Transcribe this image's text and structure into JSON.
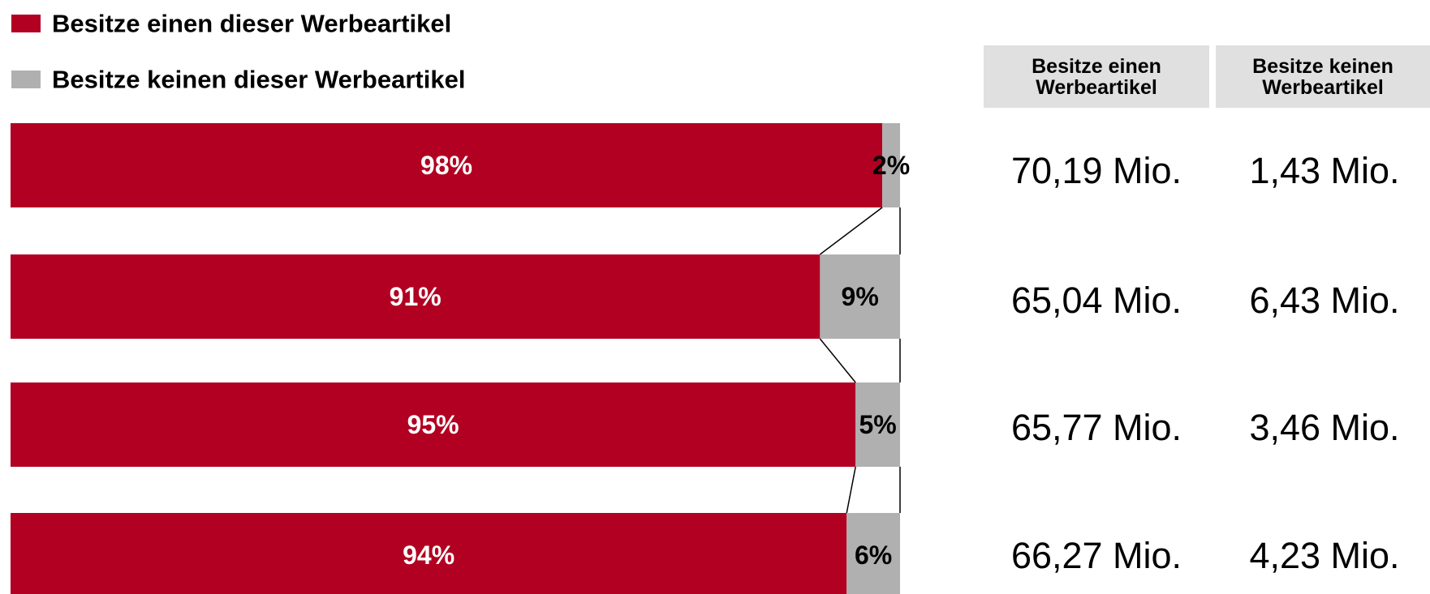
{
  "chart_data": {
    "type": "stacked-bar",
    "orientation": "horizontal",
    "categories": [
      null,
      null,
      null,
      null
    ],
    "series": [
      {
        "name": "Besitze einen dieser Werbeartikel",
        "color": "#b10021",
        "label_color": "#ffffff",
        "values": [
          98,
          91,
          95,
          94
        ],
        "value_labels": [
          "98%",
          "91%",
          "95%",
          "94%"
        ]
      },
      {
        "name": "Besitze keinen dieser Werbeartikel",
        "color": "#b0b0b0",
        "label_color": "#000000",
        "values": [
          2,
          9,
          5,
          6
        ],
        "value_labels": [
          "2%",
          "9%",
          "5%",
          "6%"
        ]
      }
    ]
  },
  "table": {
    "headers": [
      "Besitze einen Werbeartikel",
      "Besitze keinen Werbeartikel"
    ],
    "rows": [
      [
        "70,19 Mio.",
        "1,43 Mio."
      ],
      [
        "65,04 Mio.",
        "6,43 Mio."
      ],
      [
        "65,77 Mio.",
        "3,46 Mio."
      ],
      [
        "66,27 Mio.",
        "4,23 Mio."
      ]
    ]
  }
}
